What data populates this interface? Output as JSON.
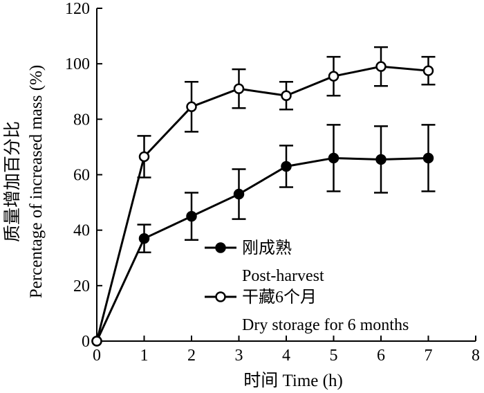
{
  "chart_data": {
    "type": "line",
    "xlabel": "时间 Time (h)",
    "ylabel_cn": "质量增加百分比",
    "ylabel_en": "Percentage of increased mass (%)",
    "xlim": [
      0,
      8
    ],
    "ylim": [
      0,
      120
    ],
    "x_ticks": [
      "0",
      "1",
      "2",
      "3",
      "4",
      "5",
      "6",
      "7",
      "8"
    ],
    "y_ticks": [
      "0",
      "20",
      "40",
      "60",
      "80",
      "100",
      "120"
    ],
    "grid": false,
    "legend_position": "center-right",
    "series": [
      {
        "name_cn": "刚成熟",
        "name_en": "Post-harvest",
        "marker": "filled-circle",
        "x": [
          0,
          1,
          2,
          3,
          4,
          5,
          6,
          7
        ],
        "values": [
          0,
          37,
          45,
          53,
          63,
          66,
          65.5,
          66
        ],
        "errors": [
          0,
          5,
          8.5,
          9,
          7.5,
          12,
          12,
          12
        ]
      },
      {
        "name_cn": "干藏6个月",
        "name_en": "Dry storage for 6 months",
        "marker": "open-circle",
        "x": [
          0,
          1,
          2,
          3,
          4,
          5,
          6,
          7
        ],
        "values": [
          0,
          66.5,
          84.5,
          91,
          88.5,
          95.5,
          99,
          97.5
        ],
        "errors": [
          0,
          7.5,
          9,
          7,
          5,
          7,
          7,
          5
        ]
      }
    ]
  }
}
